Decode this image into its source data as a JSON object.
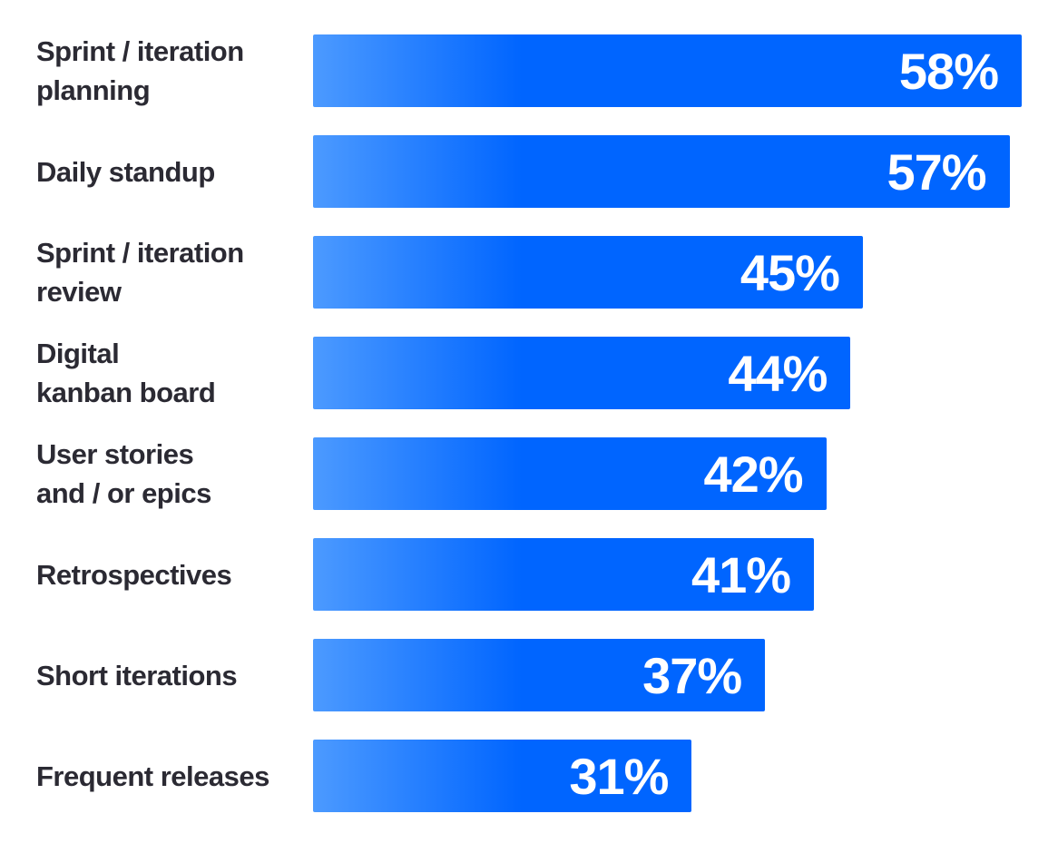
{
  "colors": {
    "background": "#FFFFFF",
    "bar_gradient_start": "#4C9AFF",
    "bar_gradient_end": "#0065FF",
    "category_label_text": "#2B2A33",
    "value_label_text": "#FFFFFF"
  },
  "chart_data": {
    "type": "bar",
    "orientation": "horizontal",
    "title": "",
    "xlabel": "",
    "ylabel": "",
    "value_suffix": "%",
    "scale_max": 58,
    "legend": "none",
    "grid": "off",
    "categories": [
      "Sprint / iteration planning",
      "Daily standup",
      "Sprint / iteration review",
      "Digital kanban board",
      "User stories and / or epics",
      "Retrospectives",
      "Short iterations",
      "Frequent releases"
    ],
    "category_label_lines": [
      [
        "Sprint / iteration",
        "planning"
      ],
      [
        "Daily standup"
      ],
      [
        "Sprint / iteration",
        "review"
      ],
      [
        "Digital",
        "kanban board"
      ],
      [
        "User stories",
        "and / or epics"
      ],
      [
        "Retrospectives"
      ],
      [
        "Short iterations"
      ],
      [
        "Frequent releases"
      ]
    ],
    "values": [
      58,
      57,
      45,
      44,
      42,
      41,
      37,
      31
    ],
    "value_labels": [
      "58%",
      "57%",
      "45%",
      "44%",
      "42%",
      "41%",
      "37%",
      "31%"
    ]
  }
}
